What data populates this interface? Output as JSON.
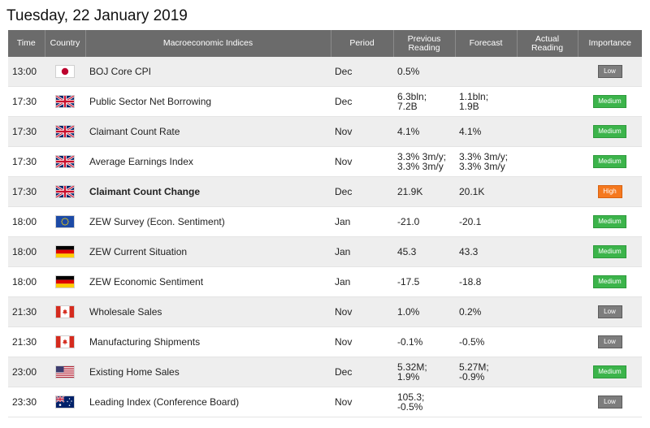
{
  "date_title": "Tuesday, 22 January 2019",
  "columns": {
    "time": "Time",
    "country": "Country",
    "indices": "Macroeconomic Indices",
    "period": "Period",
    "previous": "Previous Reading",
    "forecast": "Forecast",
    "actual": "Actual Reading",
    "importance": "Importance"
  },
  "rows": [
    {
      "time": "13:00",
      "flag": "japan-flag-icon",
      "name": "BOJ Core CPI",
      "period": "Dec",
      "previous": [
        "0.5%"
      ],
      "forecast": [
        ""
      ],
      "actual": "",
      "importance": "Low",
      "bold": false
    },
    {
      "time": "17:30",
      "flag": "uk-flag-icon",
      "name": "Public Sector Net Borrowing",
      "period": "Dec",
      "previous": [
        "6.3bln;",
        "7.2B"
      ],
      "forecast": [
        "1.1bln;",
        "1.9B"
      ],
      "actual": "",
      "importance": "Medium",
      "bold": false
    },
    {
      "time": "17:30",
      "flag": "uk-flag-icon",
      "name": "Claimant Count Rate",
      "period": "Nov",
      "previous": [
        "4.1%"
      ],
      "forecast": [
        "4.1%"
      ],
      "actual": "",
      "importance": "Medium",
      "bold": false
    },
    {
      "time": "17:30",
      "flag": "uk-flag-icon",
      "name": "Average Earnings Index",
      "period": "Nov",
      "previous": [
        "3.3% 3m/y;",
        "3.3% 3m/y"
      ],
      "forecast": [
        "3.3% 3m/y;",
        "3.3% 3m/y"
      ],
      "actual": "",
      "importance": "Medium",
      "bold": false
    },
    {
      "time": "17:30",
      "flag": "uk-flag-icon",
      "name": "Claimant Count Change",
      "period": "Dec",
      "previous": [
        "21.9K"
      ],
      "forecast": [
        "20.1K"
      ],
      "actual": "",
      "importance": "High",
      "bold": true
    },
    {
      "time": "18:00",
      "flag": "eu-flag-icon",
      "name": "ZEW Survey (Econ. Sentiment)",
      "period": "Jan",
      "previous": [
        "-21.0"
      ],
      "forecast": [
        "-20.1"
      ],
      "actual": "",
      "importance": "Medium",
      "bold": false
    },
    {
      "time": "18:00",
      "flag": "germany-flag-icon",
      "name": "ZEW Current Situation",
      "period": "Jan",
      "previous": [
        "45.3"
      ],
      "forecast": [
        "43.3"
      ],
      "actual": "",
      "importance": "Medium",
      "bold": false
    },
    {
      "time": "18:00",
      "flag": "germany-flag-icon",
      "name": "ZEW Economic Sentiment",
      "period": "Jan",
      "previous": [
        "-17.5"
      ],
      "forecast": [
        "-18.8"
      ],
      "actual": "",
      "importance": "Medium",
      "bold": false
    },
    {
      "time": "21:30",
      "flag": "canada-flag-icon",
      "name": "Wholesale Sales",
      "period": "Nov",
      "previous": [
        "1.0%"
      ],
      "forecast": [
        "0.2%"
      ],
      "actual": "",
      "importance": "Low",
      "bold": false
    },
    {
      "time": "21:30",
      "flag": "canada-flag-icon",
      "name": "Manufacturing Shipments",
      "period": "Nov",
      "previous": [
        "-0.1%"
      ],
      "forecast": [
        "-0.5%"
      ],
      "actual": "",
      "importance": "Low",
      "bold": false
    },
    {
      "time": "23:00",
      "flag": "usa-flag-icon",
      "name": "Existing Home Sales",
      "period": "Dec",
      "previous": [
        "5.32M;",
        "1.9%"
      ],
      "forecast": [
        "5.27M;",
        "-0.9%"
      ],
      "actual": "",
      "importance": "Medium",
      "bold": false
    },
    {
      "time": "23:30",
      "flag": "australia-flag-icon",
      "name": "Leading Index (Conference Board)",
      "period": "Nov",
      "previous": [
        "105.3;",
        "-0.5%"
      ],
      "forecast": [
        ""
      ],
      "actual": "",
      "importance": "Low",
      "bold": false
    }
  ],
  "colors": {
    "header_bg": "#6b6b6b",
    "row_alt_bg": "#eeeeee",
    "low": "#7d7d7d",
    "medium": "#3cb44b",
    "high": "#f5791f"
  }
}
